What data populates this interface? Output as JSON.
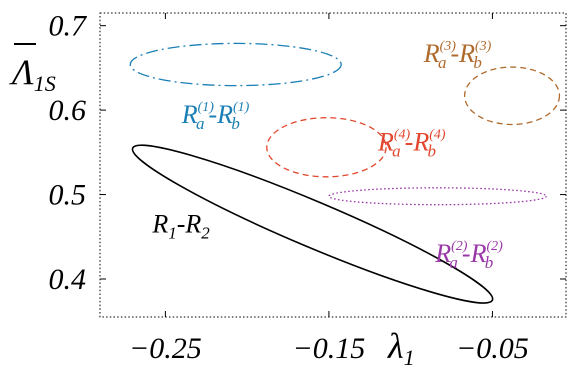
{
  "chart_data": {
    "type": "scatter",
    "title": "",
    "xlabel": {
      "main": "λ",
      "sub": "1"
    },
    "ylabel": {
      "main": "Λ",
      "bar": true,
      "sub": "1S"
    },
    "xlim": [
      -0.29,
      -0.005
    ],
    "ylim": [
      0.355,
      0.715
    ],
    "xticks": [
      {
        "value": -0.25,
        "label": "−0.25"
      },
      {
        "value": -0.15,
        "label": "−0.15"
      },
      {
        "value": -0.05,
        "label": "−0.05"
      }
    ],
    "yticks": [
      {
        "value": 0.4,
        "label": "0.4"
      },
      {
        "value": 0.5,
        "label": "0.5"
      },
      {
        "value": 0.6,
        "label": "0.6"
      },
      {
        "value": 0.7,
        "label": "0.7"
      }
    ],
    "grid": false,
    "series": [
      {
        "label": {
          "a": "R",
          "asub": "1",
          "b": "R",
          "bsub": "2",
          "asup": "",
          "bsup": ""
        },
        "color": "#000000",
        "dash": "solid",
        "ellipse": {
          "center": [
            -0.16,
            0.465
          ],
          "endpoints": [
            [
              -0.27,
              0.555
            ],
            [
              -0.05,
              0.375
            ]
          ],
          "half_width": 0.027
        },
        "label_at": [
          -0.258,
          0.455
        ]
      },
      {
        "label": {
          "a": "R",
          "asub": "a",
          "asup": "(1)",
          "b": "R",
          "bsub": "b",
          "bsup": "(1)"
        },
        "color": "#1a7fb5",
        "dash": "dashdot",
        "ellipse": {
          "center": [
            -0.207,
            0.654
          ],
          "semi_x": 0.0645,
          "semi_y": 0.025
        },
        "label_at": [
          -0.24,
          0.585
        ]
      },
      {
        "label": {
          "a": "R",
          "asub": "a",
          "asup": "(2)",
          "b": "R",
          "bsub": "b",
          "bsup": "(2)"
        },
        "color": "#9a37a8",
        "dash": "dotted",
        "ellipse": {
          "center": [
            -0.0835,
            0.498
          ],
          "semi_x": 0.0665,
          "semi_y": 0.01
        },
        "label_at": [
          -0.085,
          0.42
        ]
      },
      {
        "label": {
          "a": "R",
          "asub": "a",
          "asup": "(3)",
          "b": "R",
          "bsub": "b",
          "bsup": "(3)"
        },
        "color": "#b06a2c",
        "dash": "dashed",
        "ellipse": {
          "center": [
            -0.038,
            0.617
          ],
          "semi_x": 0.029,
          "semi_y": 0.034
        },
        "label_at": [
          -0.092,
          0.657
        ]
      },
      {
        "label": {
          "a": "R",
          "asub": "a",
          "asup": "(4)",
          "b": "R",
          "bsub": "b",
          "bsup": "(4)"
        },
        "color": "#e2462d",
        "dash": "dashed",
        "ellipse": {
          "center": [
            -0.1515,
            0.556
          ],
          "semi_x": 0.0365,
          "semi_y": 0.035
        },
        "label_at": [
          -0.12,
          0.552
        ]
      }
    ]
  }
}
